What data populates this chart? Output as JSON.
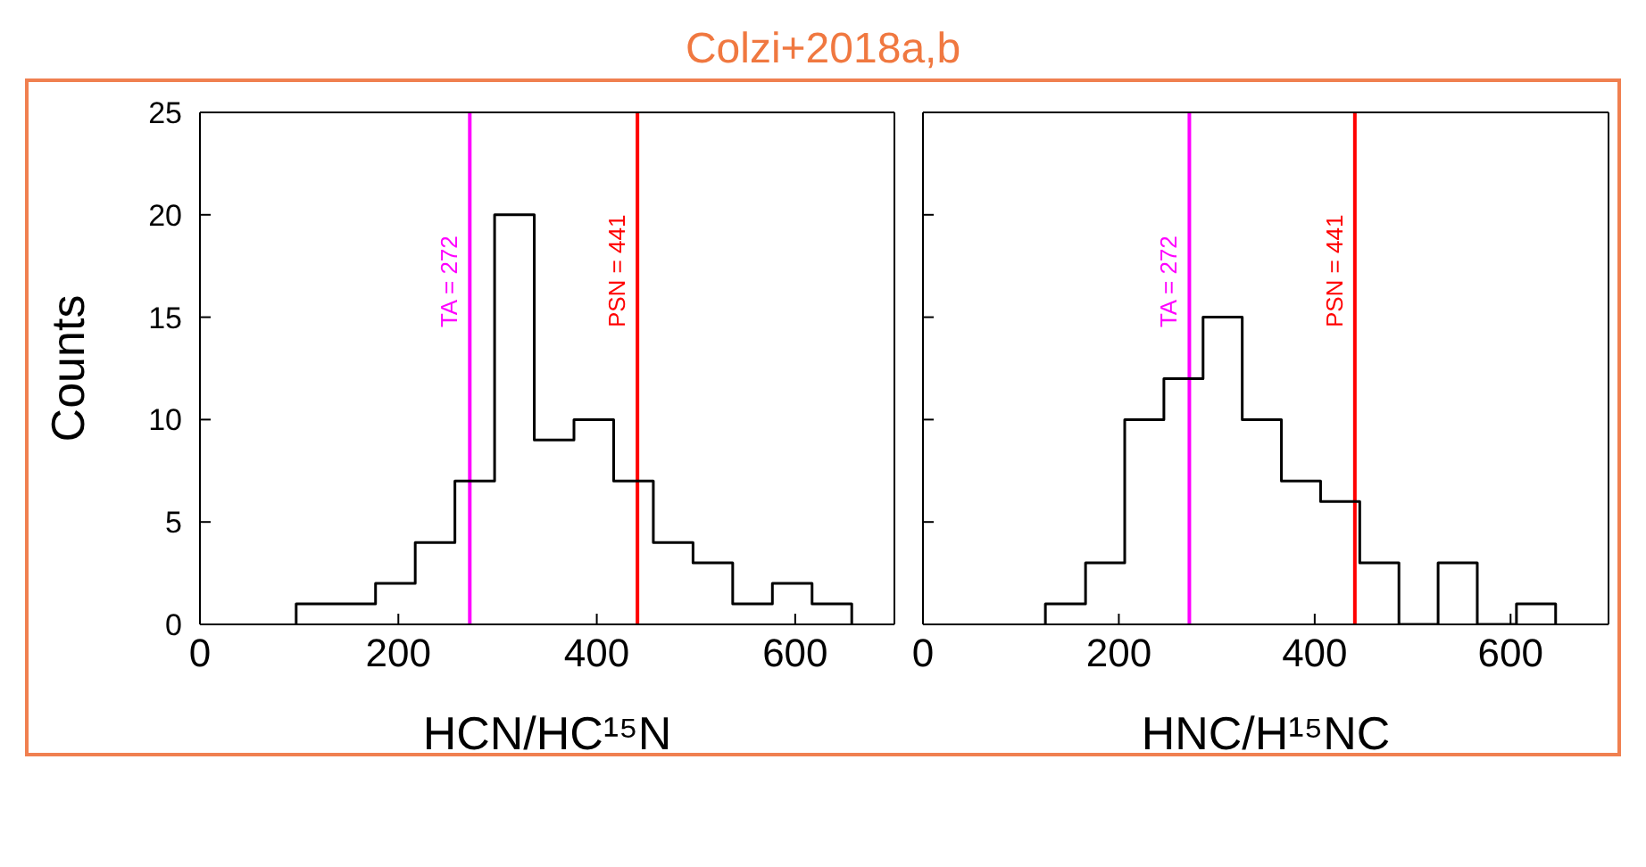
{
  "chart_data": [
    {
      "type": "histogram",
      "title": "Colzi+2018a,b",
      "xlabel": "HCN/HC¹⁵N",
      "ylabel": "Counts",
      "color": "#000000",
      "bins": [
        97,
        137,
        177,
        217,
        257,
        297,
        337,
        377,
        417,
        457,
        497,
        537,
        577,
        617,
        657
      ],
      "values": [
        1,
        1,
        2,
        4,
        7,
        20,
        9,
        10,
        7,
        4,
        3,
        1,
        2,
        1
      ],
      "xlim": [
        0,
        700
      ],
      "xticks": [
        0,
        200,
        400,
        600
      ],
      "ylim": [
        0,
        25
      ],
      "yticks": [
        0,
        5,
        10,
        15,
        20,
        25
      ],
      "ref_lines": [
        {
          "axis": "x",
          "value": 272,
          "label": "TA = 272",
          "color": "#ff00ff"
        },
        {
          "axis": "x",
          "value": 441,
          "label": "PSN = 441",
          "color": "#ff0000"
        }
      ]
    },
    {
      "type": "histogram",
      "xlabel": "HNC/H¹⁵NC",
      "color": "#000000",
      "bins": [
        125,
        166,
        206,
        246,
        286,
        326,
        366,
        406,
        446,
        486,
        526,
        566,
        606,
        646
      ],
      "values": [
        1,
        3,
        10,
        12,
        15,
        10,
        7,
        6,
        3,
        0,
        3,
        0,
        1
      ],
      "xlim": [
        0,
        700
      ],
      "xticks": [
        0,
        200,
        400,
        600
      ],
      "ylim": [
        0,
        25
      ],
      "yticks": [
        0,
        5,
        10,
        15,
        20,
        25
      ],
      "tick_labels": "x",
      "ref_lines": [
        {
          "axis": "x",
          "value": 272,
          "label": "TA = 272",
          "color": "#ff00ff"
        },
        {
          "axis": "x",
          "value": 441,
          "label": "PSN = 441",
          "color": "#ff0000"
        }
      ]
    }
  ]
}
